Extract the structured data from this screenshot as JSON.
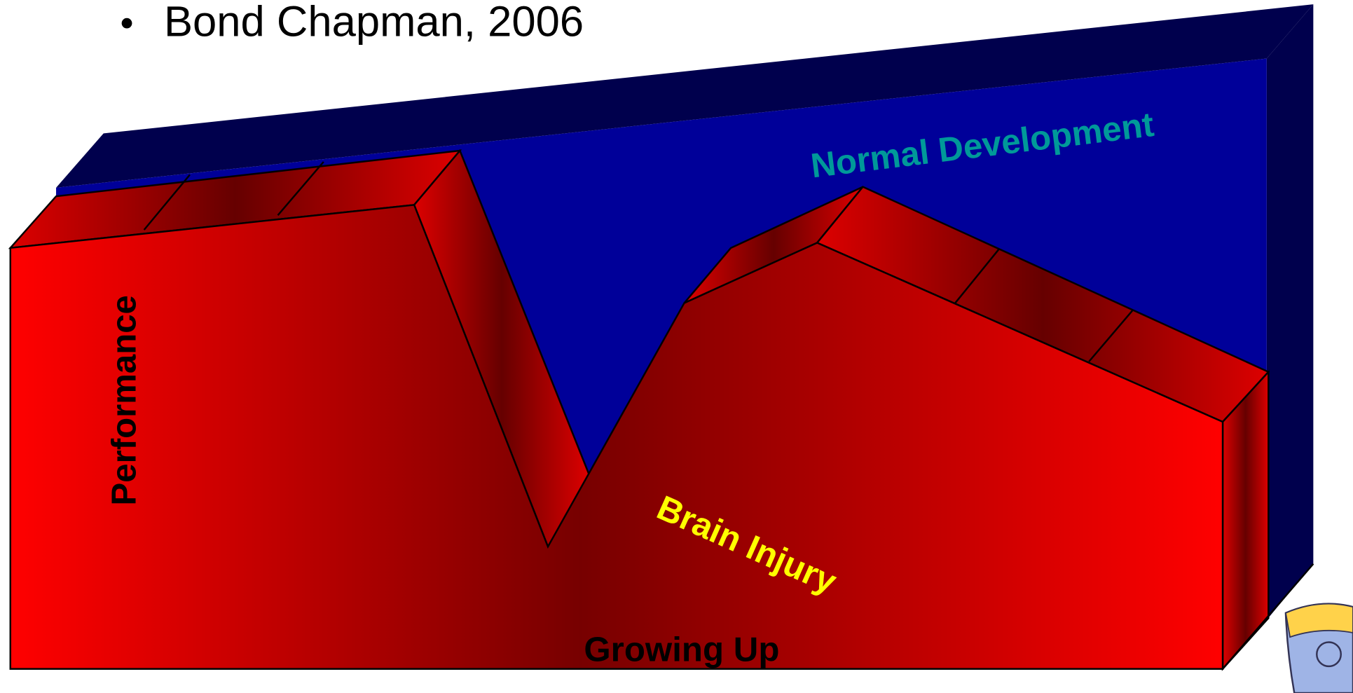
{
  "header": {
    "title": "Bond Chapman, 2006"
  },
  "labels": {
    "normal": "Normal Development",
    "injury": "Brain Injury",
    "y_axis": "Performance",
    "x_axis": "Growing Up"
  }
}
